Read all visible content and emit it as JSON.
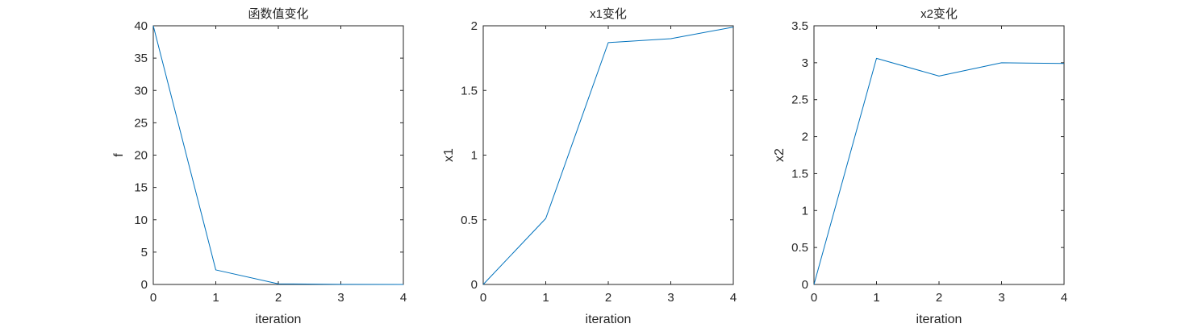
{
  "figure": {
    "background": "#ffffff"
  },
  "style": {
    "line_color": "#0072bd",
    "axis_color": "#262626"
  },
  "chart_data": [
    {
      "type": "line",
      "title": "函数值变化",
      "xlabel": "iteration",
      "ylabel": "f",
      "xlim": [
        0,
        4
      ],
      "ylim": [
        0,
        40
      ],
      "xticks": [
        0,
        1,
        2,
        3,
        4
      ],
      "yticks": [
        0,
        5,
        10,
        15,
        20,
        25,
        30,
        35,
        40
      ],
      "x": [
        0,
        1,
        2,
        3,
        4
      ],
      "y": [
        40,
        2.25,
        0.1,
        0.02,
        0.0
      ],
      "grid": false,
      "box": true
    },
    {
      "type": "line",
      "title": "x1变化",
      "xlabel": "iteration",
      "ylabel": "x1",
      "xlim": [
        0,
        4
      ],
      "ylim": [
        0,
        2
      ],
      "xticks": [
        0,
        1,
        2,
        3,
        4
      ],
      "yticks": [
        0,
        0.5,
        1,
        1.5,
        2
      ],
      "x": [
        0,
        1,
        2,
        3,
        4
      ],
      "y": [
        0,
        0.51,
        1.87,
        1.9,
        1.99
      ],
      "grid": false,
      "box": true
    },
    {
      "type": "line",
      "title": "x2变化",
      "xlabel": "iteration",
      "ylabel": "x2",
      "xlim": [
        0,
        4
      ],
      "ylim": [
        0,
        3.5
      ],
      "xticks": [
        0,
        1,
        2,
        3,
        4
      ],
      "yticks": [
        0,
        0.5,
        1,
        1.5,
        2,
        2.5,
        3,
        3.5
      ],
      "x": [
        0,
        1,
        2,
        3,
        4
      ],
      "y": [
        0,
        3.06,
        2.82,
        3.0,
        2.99
      ],
      "grid": false,
      "box": true
    }
  ]
}
